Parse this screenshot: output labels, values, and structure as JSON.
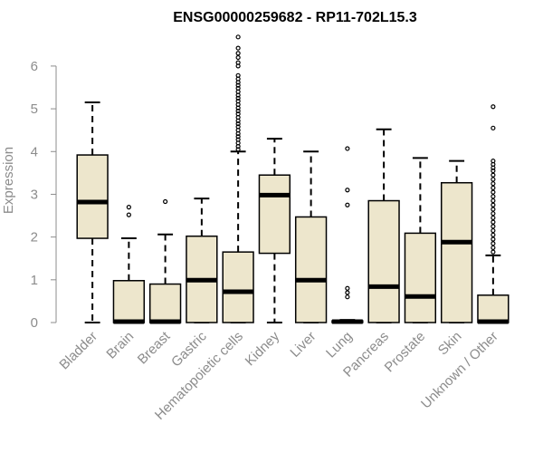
{
  "chart_data": {
    "type": "boxplot",
    "title": "ENSG00000259682 - RP11-702L15.3",
    "xlabel": "",
    "ylabel": "Expression",
    "ylim": [
      0,
      6.6
    ],
    "yticks": [
      0,
      1,
      2,
      3,
      4,
      5,
      6
    ],
    "grid": false,
    "box_color": "#ede6cc",
    "categories": [
      "Bladder",
      "Brain",
      "Breast",
      "Gastric",
      "Hematopoietic cells",
      "Kidney",
      "Liver",
      "Lung",
      "Pancreas",
      "Prostate",
      "Skin",
      "Unknown / Other"
    ],
    "boxes": [
      {
        "label": "Bladder",
        "min": 0,
        "q1": 1.97,
        "median": 2.82,
        "q3": 3.92,
        "max": 5.15,
        "outliers": []
      },
      {
        "label": "Brain",
        "min": 0,
        "q1": 0,
        "median": 0.02,
        "q3": 0.98,
        "max": 1.97,
        "outliers": [
          2.52,
          2.7
        ]
      },
      {
        "label": "Breast",
        "min": 0,
        "q1": 0,
        "median": 0.02,
        "q3": 0.9,
        "max": 2.06,
        "outliers": [
          2.83
        ]
      },
      {
        "label": "Gastric",
        "min": 0,
        "q1": 0,
        "median": 0.99,
        "q3": 2.02,
        "max": 2.9,
        "outliers": []
      },
      {
        "label": "Hematopoietic cells",
        "min": 0,
        "q1": 0,
        "median": 0.72,
        "q3": 1.65,
        "max": 4.0,
        "outliers": [
          4.05,
          4.12,
          4.2,
          4.28,
          4.35,
          4.42,
          4.5,
          4.58,
          4.65,
          4.72,
          4.8,
          4.88,
          4.95,
          5.02,
          5.1,
          5.18,
          5.25,
          5.32,
          5.4,
          5.48,
          5.55,
          5.62,
          5.7,
          5.78,
          6.0,
          6.08,
          6.2,
          6.3,
          6.42,
          6.68
        ]
      },
      {
        "label": "Kidney",
        "min": 0,
        "q1": 1.62,
        "median": 2.98,
        "q3": 3.45,
        "max": 4.3,
        "outliers": []
      },
      {
        "label": "Liver",
        "min": 0,
        "q1": 0,
        "median": 0.99,
        "q3": 2.47,
        "max": 4.0,
        "outliers": []
      },
      {
        "label": "Lung",
        "min": 0,
        "q1": 0,
        "median": 0.02,
        "q3": 0.04,
        "max": 0.06,
        "outliers": [
          0.6,
          0.7,
          0.8,
          2.75,
          3.1,
          4.07
        ]
      },
      {
        "label": "Pancreas",
        "min": 0,
        "q1": 0,
        "median": 0.84,
        "q3": 2.85,
        "max": 4.52,
        "outliers": []
      },
      {
        "label": "Prostate",
        "min": 0,
        "q1": 0,
        "median": 0.61,
        "q3": 2.09,
        "max": 3.85,
        "outliers": []
      },
      {
        "label": "Skin",
        "min": 0,
        "q1": 0,
        "median": 1.88,
        "q3": 3.27,
        "max": 3.78,
        "outliers": []
      },
      {
        "label": "Unknown / Other",
        "min": 0,
        "q1": 0,
        "median": 0.02,
        "q3": 0.64,
        "max": 1.57,
        "outliers": [
          1.65,
          1.75,
          1.85,
          1.95,
          2.05,
          2.15,
          2.25,
          2.35,
          2.45,
          2.55,
          2.65,
          2.75,
          2.85,
          2.95,
          3.05,
          3.15,
          3.25,
          3.35,
          3.45,
          3.55,
          3.62,
          3.7,
          3.78,
          4.55,
          5.05
        ]
      }
    ]
  }
}
